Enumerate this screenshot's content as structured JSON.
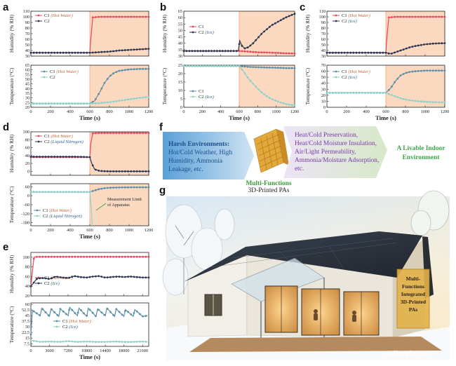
{
  "panel_labels": [
    "a",
    "b",
    "c",
    "d",
    "e",
    "f",
    "g"
  ],
  "x_axis_title": "Time (s)",
  "humidity_axis_label": "Humidity (% RH)",
  "temperature_axis_label": "Temperature (°C)",
  "colors": {
    "c1": "#e8485e",
    "c2_dark": "#2a3552",
    "c2_light": "#8fd1c9",
    "shade": "#fbd9c0",
    "shade_edge": "#f4a470",
    "arrow_green": "#3aa64a"
  },
  "chart_data": [
    {
      "panel": "a",
      "type": "line",
      "xlabel": "Time (s)",
      "ylabel": "Humidity (% RH)",
      "xlim": [
        0,
        1200
      ],
      "ylim": [
        30,
        110
      ],
      "shade_from": 600,
      "x_ticks": [
        0,
        200,
        400,
        600,
        800,
        1000,
        1200
      ],
      "y_ticks": [
        30.0,
        40.0,
        50.0,
        60.0,
        70.0,
        80.0,
        90.0,
        100.0,
        110.0
      ],
      "series": [
        {
          "name": "C1",
          "note": "(Hot Water)",
          "color": "#e8485e",
          "x": [
            0,
            150,
            300,
            450,
            600,
            610,
            630,
            700,
            800,
            900,
            1000,
            1100,
            1200
          ],
          "y": [
            36,
            36,
            36,
            36,
            36,
            60,
            99,
            100,
            100,
            100,
            100,
            100,
            100
          ]
        },
        {
          "name": "C2",
          "note": "",
          "color": "#2a3552",
          "x": [
            0,
            150,
            300,
            450,
            600,
            700,
            800,
            900,
            1000,
            1100,
            1200
          ],
          "y": [
            36,
            36,
            36,
            36,
            36,
            37,
            38,
            40,
            41,
            42,
            43
          ]
        }
      ]
    },
    {
      "panel": "a",
      "type": "line",
      "xlabel": "Time (s)",
      "ylabel": "Temperature (°C)",
      "xlim": [
        0,
        1200
      ],
      "ylim": [
        20,
        65
      ],
      "shade_from": 600,
      "x_ticks": [
        0,
        200,
        400,
        600,
        800,
        1000,
        1200
      ],
      "y_ticks": [
        20.0,
        25.0,
        30.0,
        35.0,
        40.0,
        45.0,
        50.0,
        55.0,
        60.0,
        65.0
      ],
      "series": [
        {
          "name": "C1",
          "note": "(Hot Water)",
          "color": "#5a8fa8",
          "x": [
            0,
            150,
            300,
            450,
            600,
            650,
            700,
            750,
            800,
            850,
            900,
            1000,
            1100,
            1200
          ],
          "y": [
            24,
            24,
            24,
            24,
            24,
            27,
            36,
            46,
            53,
            57,
            59,
            60.5,
            61,
            61
          ]
        },
        {
          "name": "C2",
          "note": "",
          "color": "#8fd1c9",
          "x": [
            0,
            150,
            300,
            450,
            600,
            700,
            800,
            900,
            1000,
            1100,
            1200
          ],
          "y": [
            24,
            24,
            24,
            24,
            24,
            24.5,
            25.5,
            27,
            28.5,
            30,
            31
          ]
        }
      ]
    },
    {
      "panel": "b",
      "type": "line",
      "xlabel": "Time (s)",
      "ylabel": "Humidity (% RH)",
      "xlim": [
        0,
        1200
      ],
      "ylim": [
        30,
        65
      ],
      "shade_from": 600,
      "x_ticks": [
        0,
        200,
        400,
        600,
        800,
        1000,
        1200
      ],
      "y_ticks": [
        30.0,
        35.0,
        40.0,
        45.0,
        50.0,
        55.0,
        60.0,
        65.0
      ],
      "series": [
        {
          "name": "C1",
          "note": "",
          "color": "#e8485e",
          "x": [
            0,
            150,
            300,
            450,
            600,
            700,
            800,
            900,
            1000,
            1100,
            1200
          ],
          "y": [
            34,
            34,
            34,
            34,
            34,
            33.5,
            33,
            32.8,
            32.5,
            32.2,
            32
          ]
        },
        {
          "name": "C2",
          "note": "(Ice)",
          "color": "#2a3552",
          "x": [
            0,
            150,
            300,
            450,
            590,
            605,
            630,
            660,
            700,
            750,
            800,
            850,
            900,
            950,
            1000,
            1050,
            1100,
            1150,
            1200
          ],
          "y": [
            34,
            34,
            34,
            34,
            34,
            42,
            38,
            36,
            37,
            40,
            44,
            48,
            51,
            54,
            56,
            58,
            60,
            61.5,
            63
          ]
        }
      ]
    },
    {
      "panel": "b",
      "type": "line",
      "xlabel": "Time (s)",
      "ylabel": "Temperature (°C)",
      "xlim": [
        0,
        1200
      ],
      "ylim": [
        0,
        25
      ],
      "shade_from": 600,
      "x_ticks": [
        0,
        200,
        400,
        600,
        800,
        1000,
        1200
      ],
      "y_ticks": [
        0,
        5,
        10,
        15,
        20,
        25
      ],
      "series": [
        {
          "name": "C1",
          "note": "",
          "color": "#5a8fa8",
          "x": [
            0,
            150,
            300,
            450,
            600,
            700,
            800,
            900,
            1000,
            1100,
            1200
          ],
          "y": [
            24.5,
            24.5,
            24.5,
            24.5,
            24.5,
            24,
            23.8,
            23.6,
            23.5,
            23.3,
            23.2
          ]
        },
        {
          "name": "C2",
          "note": "(Ice)",
          "color": "#8fd1c9",
          "x": [
            0,
            150,
            300,
            450,
            600,
            650,
            700,
            750,
            800,
            850,
            900,
            950,
            1000,
            1050,
            1100,
            1150,
            1200
          ],
          "y": [
            24.5,
            24.5,
            24.5,
            24.5,
            24.5,
            21,
            17,
            14,
            11,
            8.5,
            6.5,
            5,
            3.8,
            2.8,
            2,
            1.5,
            1.2
          ]
        }
      ]
    },
    {
      "panel": "c",
      "type": "line",
      "xlabel": "Time (s)",
      "ylabel": "Humidity (% RH)",
      "xlim": [
        0,
        1200
      ],
      "ylim": [
        30,
        110
      ],
      "shade_from": 600,
      "x_ticks": [
        0,
        200,
        400,
        600,
        800,
        1000,
        1200
      ],
      "y_ticks": [
        30.0,
        40.0,
        50.0,
        60.0,
        70.0,
        80.0,
        90.0,
        100.0,
        110.0
      ],
      "series": [
        {
          "name": "C1",
          "note": "(Hot Water)",
          "color": "#e8485e",
          "x": [
            0,
            150,
            300,
            450,
            600,
            610,
            630,
            700,
            800,
            900,
            1000,
            1100,
            1200
          ],
          "y": [
            36,
            36,
            36,
            36,
            36,
            62,
            99,
            100,
            100,
            100,
            100,
            100,
            100
          ]
        },
        {
          "name": "C2",
          "note": "(Ice)",
          "color": "#2a3552",
          "x": [
            0,
            150,
            300,
            450,
            600,
            650,
            700,
            750,
            800,
            850,
            900,
            1000,
            1100,
            1200
          ],
          "y": [
            36,
            36,
            36,
            36,
            36,
            34,
            37,
            40,
            43,
            46,
            48,
            51,
            52.5,
            53
          ]
        }
      ]
    },
    {
      "panel": "c",
      "type": "line",
      "xlabel": "Time (s)",
      "ylabel": "Temperature (°C)",
      "xlim": [
        0,
        1200
      ],
      "ylim": [
        0,
        70
      ],
      "shade_from": 600,
      "x_ticks": [
        0,
        200,
        400,
        600,
        800,
        1000,
        1200
      ],
      "y_ticks": [
        0,
        10.0,
        20.0,
        30.0,
        40.0,
        50.0,
        60.0,
        70.0
      ],
      "series": [
        {
          "name": "C1",
          "note": "(Hot Water)",
          "color": "#5a8fa8",
          "x": [
            0,
            150,
            300,
            450,
            600,
            650,
            700,
            750,
            800,
            850,
            900,
            1000,
            1100,
            1200
          ],
          "y": [
            24,
            24,
            24,
            24,
            24,
            32,
            44,
            53,
            57,
            59,
            60,
            61,
            61,
            61
          ]
        },
        {
          "name": "C2",
          "note": "(Ice)",
          "color": "#8fd1c9",
          "x": [
            0,
            150,
            300,
            450,
            600,
            650,
            700,
            750,
            800,
            850,
            900,
            950,
            1000,
            1100,
            1200
          ],
          "y": [
            24,
            24,
            24,
            24,
            24,
            21,
            18,
            15,
            13,
            11.5,
            10.5,
            9.8,
            9.2,
            8.5,
            8
          ]
        }
      ]
    },
    {
      "panel": "d",
      "type": "line",
      "xlabel": "Time (s)",
      "ylabel": "Humidity (% RH)",
      "xlim": [
        0,
        1200
      ],
      "ylim": [
        -10,
        100
      ],
      "shade_from": 600,
      "x_ticks": [
        0,
        200,
        400,
        600,
        800,
        1000,
        1200
      ],
      "y_ticks": [
        0.0,
        20.0,
        40.0,
        60.0,
        80.0,
        100.0
      ],
      "series": [
        {
          "name": "C1",
          "note": "(Hot Water)",
          "color": "#e8485e",
          "x": [
            0,
            150,
            300,
            450,
            600,
            610,
            630,
            700,
            800,
            900,
            1000,
            1100,
            1200
          ],
          "y": [
            36,
            36,
            36,
            36,
            36,
            70,
            96,
            97,
            97,
            97,
            97,
            97,
            97
          ]
        },
        {
          "name": "C2",
          "note": "(Liquid Nitrogen)",
          "color": "#2a3552",
          "x": [
            0,
            150,
            300,
            450,
            600,
            620,
            650,
            700,
            800,
            900,
            1000,
            1100,
            1200
          ],
          "y": [
            37,
            37,
            37,
            37,
            36,
            20,
            5,
            1,
            0,
            0,
            0,
            0,
            0
          ]
        }
      ]
    },
    {
      "panel": "d",
      "type": "line",
      "xlabel": "Time (s)",
      "ylabel": "Temperature (°C)",
      "xlim": [
        0,
        1200
      ],
      "ylim": [
        -200,
        80
      ],
      "shade_from": 600,
      "x_ticks": [
        0,
        200,
        400,
        600,
        800,
        1000,
        1200
      ],
      "y_ticks": [
        -180.0,
        -120.0,
        -60.0,
        0.0,
        60.0
      ],
      "annotation": "Measurement Limit of Apparatus",
      "series": [
        {
          "name": "C1",
          "note": "(Hot Water)",
          "color": "#5a8fa8",
          "x": [
            0,
            150,
            300,
            450,
            600,
            650,
            700,
            750,
            800,
            900,
            1000,
            1100,
            1200
          ],
          "y": [
            25,
            25,
            25,
            25,
            25,
            35,
            45,
            50,
            53,
            55,
            56,
            56,
            56
          ]
        },
        {
          "name": "C2",
          "note": "(Liquid Nitrogen)",
          "color": "#8fd1c9",
          "x": [
            0,
            150,
            300,
            450,
            600,
            615,
            625
          ],
          "y": [
            25,
            25,
            25,
            25,
            25,
            -80,
            -200
          ]
        }
      ]
    },
    {
      "panel": "e",
      "type": "line",
      "xlabel": "Time (s)",
      "ylabel": "Humidity (% RH)",
      "xlim": [
        0,
        22800
      ],
      "ylim": [
        20,
        110
      ],
      "x_ticks": [
        0,
        3600,
        7200,
        10800,
        14400,
        18000,
        21600
      ],
      "y_ticks": [
        20.0,
        40.0,
        60.0,
        80.0,
        100.0
      ],
      "series": [
        {
          "name": "C1",
          "note": "(Hot Water)",
          "color": "#e8485e",
          "x": [
            0,
            600,
            1200,
            3600,
            7200,
            10800,
            14400,
            18000,
            21600,
            22800
          ],
          "y": [
            40,
            100,
            101,
            101,
            101,
            101,
            101,
            101,
            101,
            101
          ]
        },
        {
          "name": "C2",
          "note": "(Ice)",
          "color": "#2a3552",
          "x": [
            0,
            600,
            1200,
            2400,
            3600,
            4800,
            6000,
            7200,
            8400,
            9600,
            10800,
            12000,
            13200,
            14400,
            15600,
            16800,
            18000,
            19200,
            20400,
            21600,
            22800
          ],
          "y": [
            40,
            48,
            56,
            57,
            55,
            60,
            58,
            57,
            61,
            59,
            58,
            60,
            61,
            58,
            59,
            60,
            59,
            60,
            59,
            58,
            58
          ]
        }
      ]
    },
    {
      "panel": "e",
      "type": "line",
      "xlabel": "Time (s)",
      "ylabel": "Temperature (°C)",
      "xlim": [
        0,
        22800
      ],
      "ylim": [
        4,
        62
      ],
      "x_ticks": [
        0,
        3600,
        7200,
        10800,
        14400,
        18000,
        21600
      ],
      "y_ticks": [
        7.5,
        15.0,
        22.5,
        30.0,
        37.5,
        45.0,
        52.5,
        60.0
      ],
      "series": [
        {
          "name": "C1",
          "note": "(Hot Water)",
          "color": "#5a8fa8",
          "x": [
            0,
            300,
            1800,
            2100,
            3600,
            3900,
            5400,
            5700,
            7200,
            7500,
            9000,
            9300,
            10800,
            11100,
            12600,
            12900,
            14400,
            14700,
            16200,
            16500,
            18000,
            18300,
            19800,
            20100,
            21600,
            22600
          ],
          "y": [
            20,
            52,
            45,
            55,
            44,
            54,
            44,
            54,
            45,
            56,
            45,
            55,
            44,
            55,
            44,
            54,
            45,
            55,
            44,
            54,
            44,
            53,
            44,
            53,
            44,
            45
          ]
        },
        {
          "name": "C2",
          "note": "(Ice)",
          "color": "#8fd1c9",
          "x": [
            0,
            1800,
            3600,
            5400,
            7200,
            9000,
            10800,
            12600,
            14400,
            16200,
            18000,
            19800,
            21600,
            22600
          ],
          "y": [
            12,
            10,
            10.5,
            10,
            11,
            10,
            10.5,
            10,
            10,
            10.5,
            10,
            10,
            10.5,
            10
          ]
        }
      ]
    }
  ],
  "panel_f": {
    "harsh_title": "Harsh Environments:",
    "harsh_lines": [
      "Hot/Cold Weather, High",
      "Humidity, Ammonia",
      "Leakage, etc."
    ],
    "functions_lines": [
      "Heat/Cold Preservation,",
      "Heat/Cold Moisture Insulation,",
      "Air/Light Permeability,",
      "Ammonia/Moisture Adsorption,",
      "etc."
    ],
    "outcome_lines": [
      "A Livable Indoor",
      "Environment"
    ],
    "caption_bold": "Multi-Functions",
    "caption_plain": "3D-Printed PAs"
  },
  "panel_g": {
    "box_lines": [
      "Multi-",
      "Functions",
      "Integrated",
      "3D-Printed",
      "PAs"
    ],
    "watermark": "m.lhxybc.cn"
  }
}
